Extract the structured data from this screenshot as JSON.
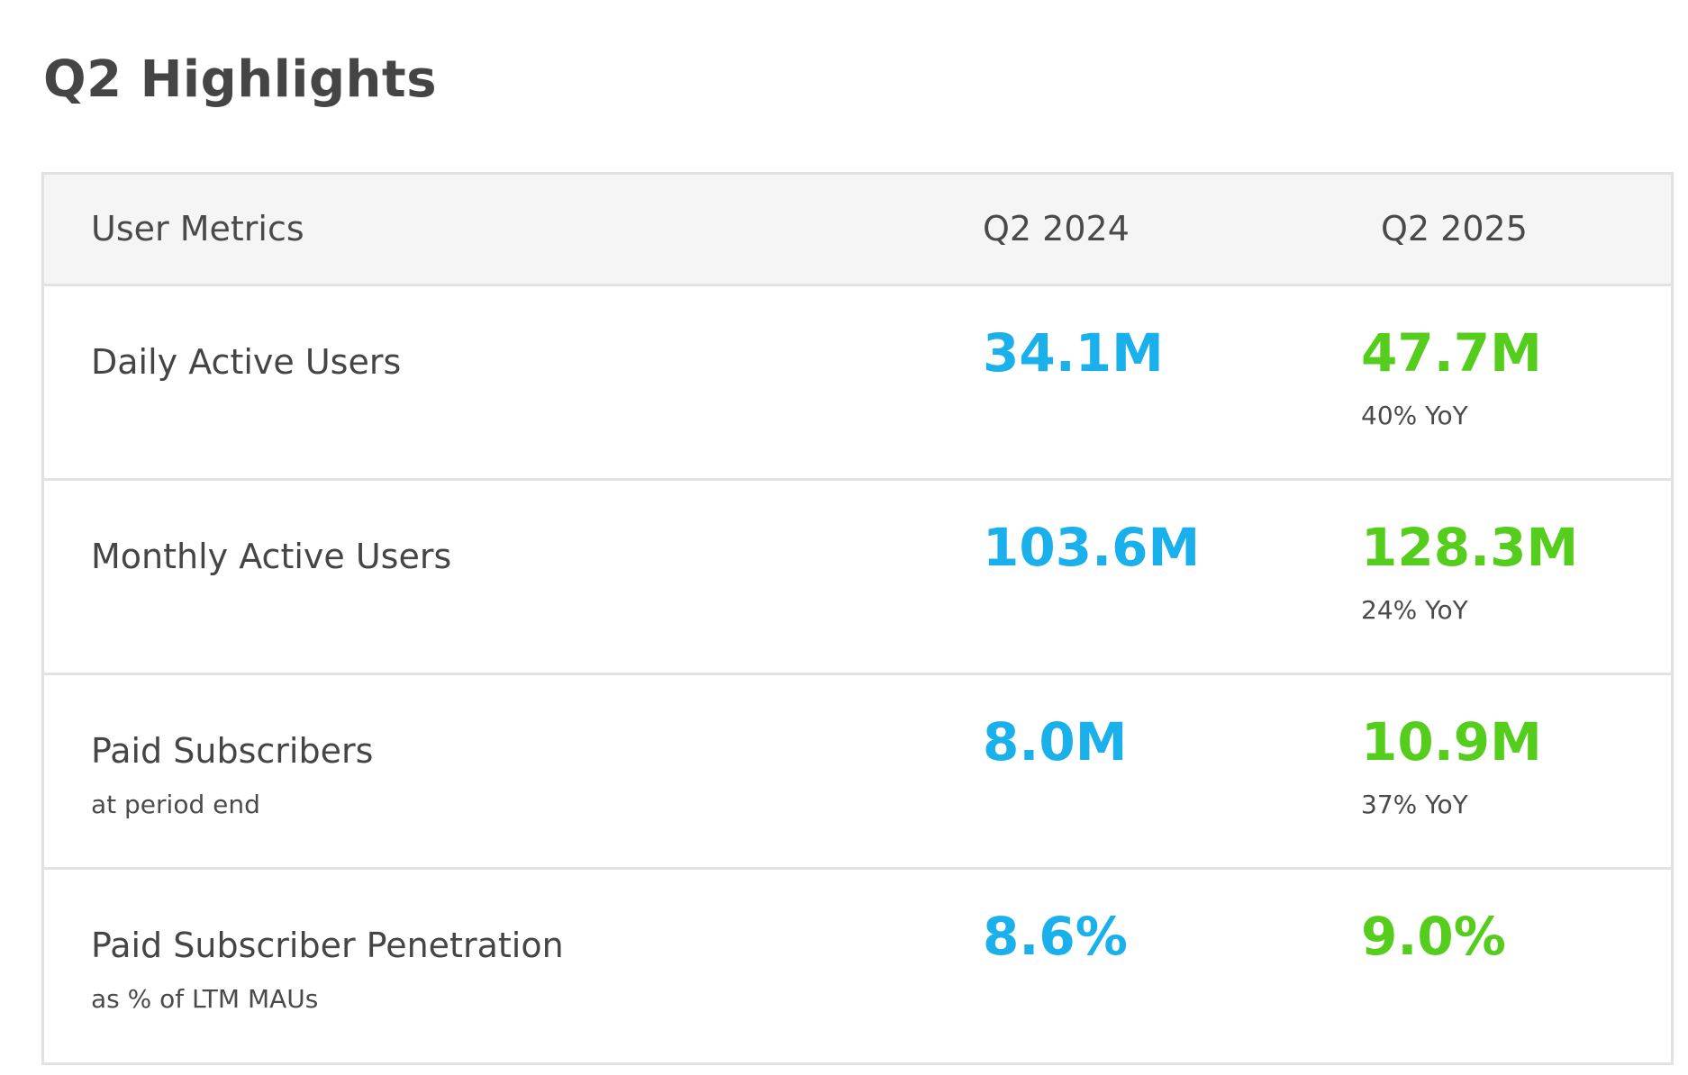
{
  "page_title": "Q2 Highlights",
  "table": {
    "header": {
      "label": "User Metrics",
      "col1": "Q2 2024",
      "col2": "Q2 2025"
    },
    "rows": [
      {
        "name": "Daily Active Users",
        "sub": "",
        "q2_2024": "34.1M",
        "q2_2025": "47.7M",
        "yoy": "40% YoY"
      },
      {
        "name": "Monthly Active Users",
        "sub": "",
        "q2_2024": "103.6M",
        "q2_2025": "128.3M",
        "yoy": "24% YoY"
      },
      {
        "name": "Paid Subscribers",
        "sub": "at period end",
        "q2_2024": "8.0M",
        "q2_2025": "10.9M",
        "yoy": "37% YoY"
      },
      {
        "name": "Paid Subscriber Penetration",
        "sub": "as % of LTM MAUs",
        "q2_2024": "8.6%",
        "q2_2025": "9.0%",
        "yoy": ""
      }
    ]
  },
  "colors": {
    "q2_2024_value": "#1ab0ec",
    "q2_2025_value": "#55cd1c",
    "border": "#e2e2e2",
    "header_background": "#f5f5f5"
  }
}
